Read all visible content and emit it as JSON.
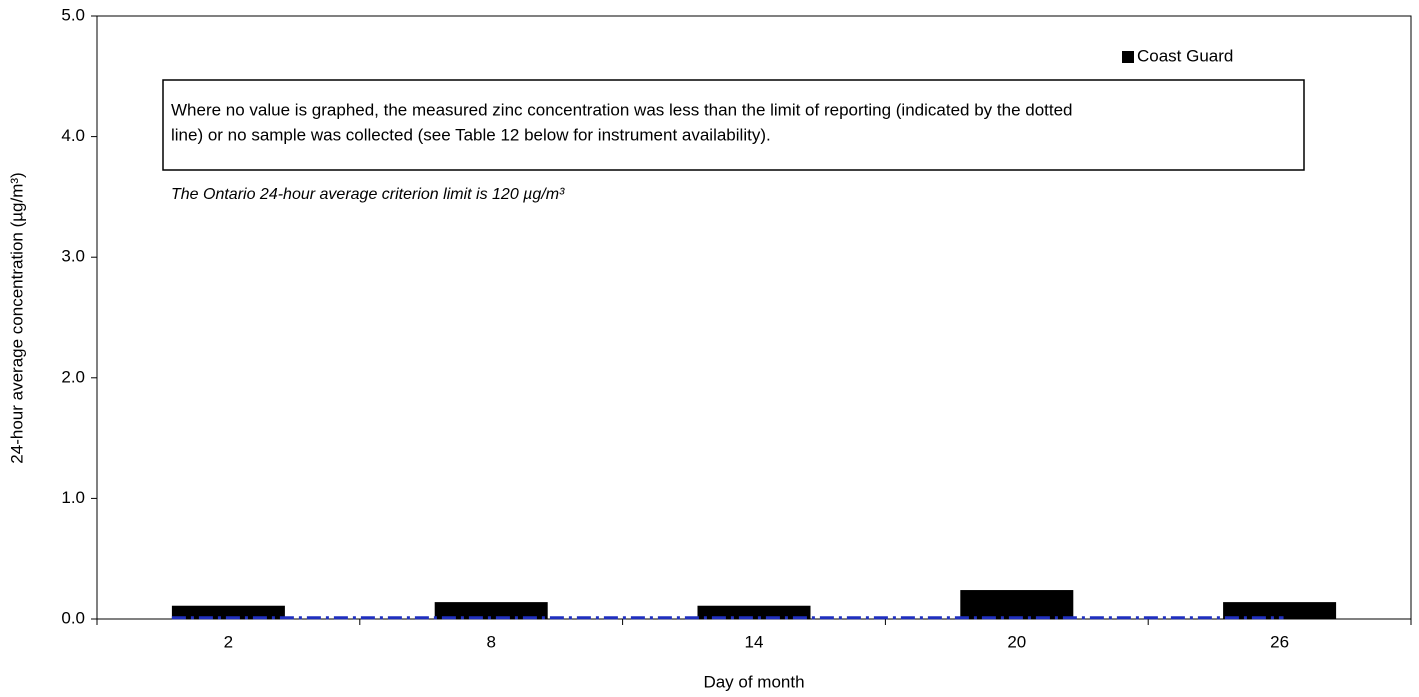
{
  "chart_data": {
    "type": "bar",
    "categories": [
      "2",
      "8",
      "14",
      "20",
      "26"
    ],
    "series": [
      {
        "name": "Coast Guard",
        "color": "#000000",
        "values": [
          0.11,
          0.14,
          0.11,
          0.24,
          0.14
        ]
      }
    ],
    "ylim": [
      0,
      5
    ],
    "yticks": [
      {
        "value": 0,
        "label": "0.0"
      },
      {
        "value": 1,
        "label": "1.0"
      },
      {
        "value": 2,
        "label": "2.0"
      },
      {
        "value": 3,
        "label": "3.0"
      },
      {
        "value": 4,
        "label": "4.0"
      },
      {
        "value": 5,
        "label": "5.0"
      }
    ],
    "xlabel": "Day of month",
    "ylabel": "24-hour average concentration (µg/m³)",
    "reference_line": {
      "value": 0.01,
      "color": "#1f2fbf"
    },
    "annotation_box": [
      "Where no value is graphed, the measured zinc concentration was less than the limit of reporting (indicated by the dotted",
      "line) or no sample was collected (see Table 12 below for instrument availability)."
    ],
    "note": "The Ontario 24-hour average criterion limit is 120 µg/m³",
    "legend": "top-right",
    "grid": false
  }
}
